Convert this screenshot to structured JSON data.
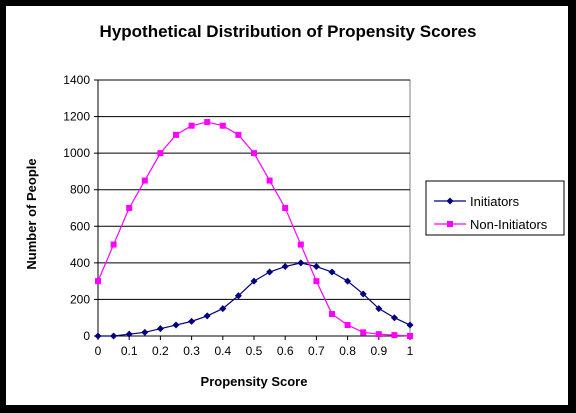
{
  "chart_data": {
    "type": "line",
    "title": "Hypothetical Distribution of Propensity Scores",
    "xlabel": "Propensity Score",
    "ylabel": "Number of People",
    "xlim": [
      0,
      1
    ],
    "ylim": [
      0,
      1400
    ],
    "x_ticks": [
      "0",
      "0.1",
      "0.2",
      "0.3",
      "0.4",
      "0.5",
      "0.6",
      "0.7",
      "0.8",
      "0.9",
      "1"
    ],
    "y_ticks": [
      "0",
      "200",
      "400",
      "600",
      "800",
      "1000",
      "1200",
      "1400"
    ],
    "grid": "horizontal",
    "legend_position": "right",
    "x": [
      0,
      0.05,
      0.1,
      0.15,
      0.2,
      0.25,
      0.3,
      0.35,
      0.4,
      0.45,
      0.5,
      0.55,
      0.6,
      0.65,
      0.7,
      0.75,
      0.8,
      0.85,
      0.9,
      0.95,
      1.0
    ],
    "series": [
      {
        "name": "Initiators",
        "color": "#000080",
        "marker": "diamond",
        "values": [
          0,
          0,
          10,
          20,
          40,
          60,
          80,
          110,
          150,
          220,
          300,
          350,
          380,
          400,
          380,
          350,
          300,
          230,
          150,
          100,
          60
        ]
      },
      {
        "name": "Non-Initiators",
        "color": "#FF00FF",
        "marker": "square",
        "values": [
          300,
          500,
          700,
          850,
          1000,
          1100,
          1150,
          1170,
          1150,
          1100,
          1000,
          850,
          700,
          500,
          300,
          120,
          60,
          20,
          10,
          5,
          0
        ]
      }
    ]
  }
}
